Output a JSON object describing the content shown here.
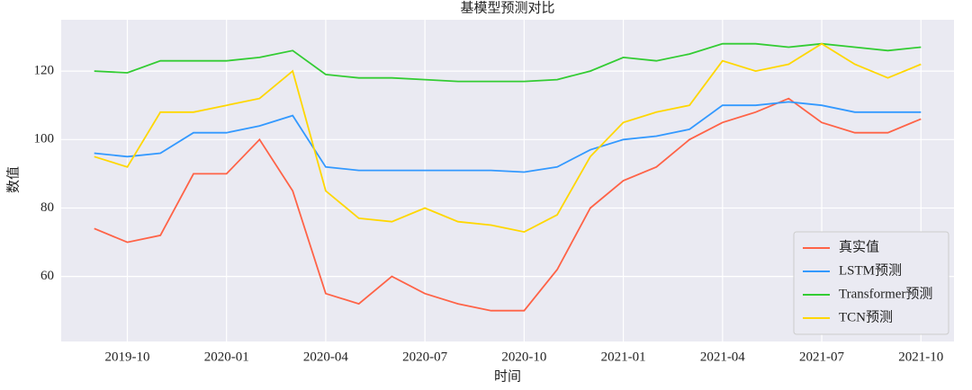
{
  "chart_data": {
    "type": "line",
    "title": "基模型预测对比",
    "x_label": "时间",
    "y_label": "数值",
    "x": [
      "2019-09",
      "2019-10",
      "2019-11",
      "2019-12",
      "2020-01",
      "2020-02",
      "2020-03",
      "2020-04",
      "2020-05",
      "2020-06",
      "2020-07",
      "2020-08",
      "2020-09",
      "2020-10",
      "2020-11",
      "2020-12",
      "2021-01",
      "2021-02",
      "2021-03",
      "2021-04",
      "2021-05",
      "2021-06",
      "2021-07",
      "2021-08",
      "2021-09",
      "2021-10"
    ],
    "series": [
      {
        "name": "真实值",
        "color": "#ff6347",
        "values": [
          74,
          70,
          72,
          90,
          90,
          100,
          85,
          55,
          52,
          60,
          55,
          52,
          50,
          50,
          62,
          80,
          88,
          92,
          100,
          105,
          108,
          112,
          105,
          102,
          102,
          106
        ]
      },
      {
        "name": "LSTM预测",
        "color": "#3399ff",
        "values": [
          96,
          95,
          96,
          102,
          102,
          104,
          107,
          92,
          91,
          91,
          91,
          91,
          91,
          90.5,
          92,
          97,
          100,
          101,
          103,
          110,
          110,
          111,
          110,
          108,
          108,
          108
        ]
      },
      {
        "name": "Transformer预测",
        "color": "#33cc33",
        "values": [
          120,
          119.5,
          123,
          123,
          123,
          124,
          126,
          119,
          118,
          118,
          117.5,
          117,
          117,
          117,
          117.5,
          120,
          124,
          123,
          125,
          128,
          128,
          127,
          128,
          127,
          126,
          127
        ]
      },
      {
        "name": "TCN预测",
        "color": "#ffd700",
        "values": [
          95,
          92,
          108,
          108,
          110,
          112,
          120,
          85,
          77,
          76,
          80,
          76,
          75,
          73,
          78,
          95,
          105,
          108,
          110,
          123,
          120,
          122,
          128,
          122,
          118,
          122
        ]
      }
    ],
    "xlim": [
      "2019-08",
      "2021-11"
    ],
    "xticks": [
      "2019-10",
      "2020-01",
      "2020-04",
      "2020-07",
      "2020-10",
      "2021-01",
      "2021-04",
      "2021-07",
      "2021-10"
    ],
    "ylim": [
      41,
      135
    ],
    "yticks": [
      60,
      80,
      100,
      120
    ],
    "grid": true,
    "legend": "lower right"
  }
}
